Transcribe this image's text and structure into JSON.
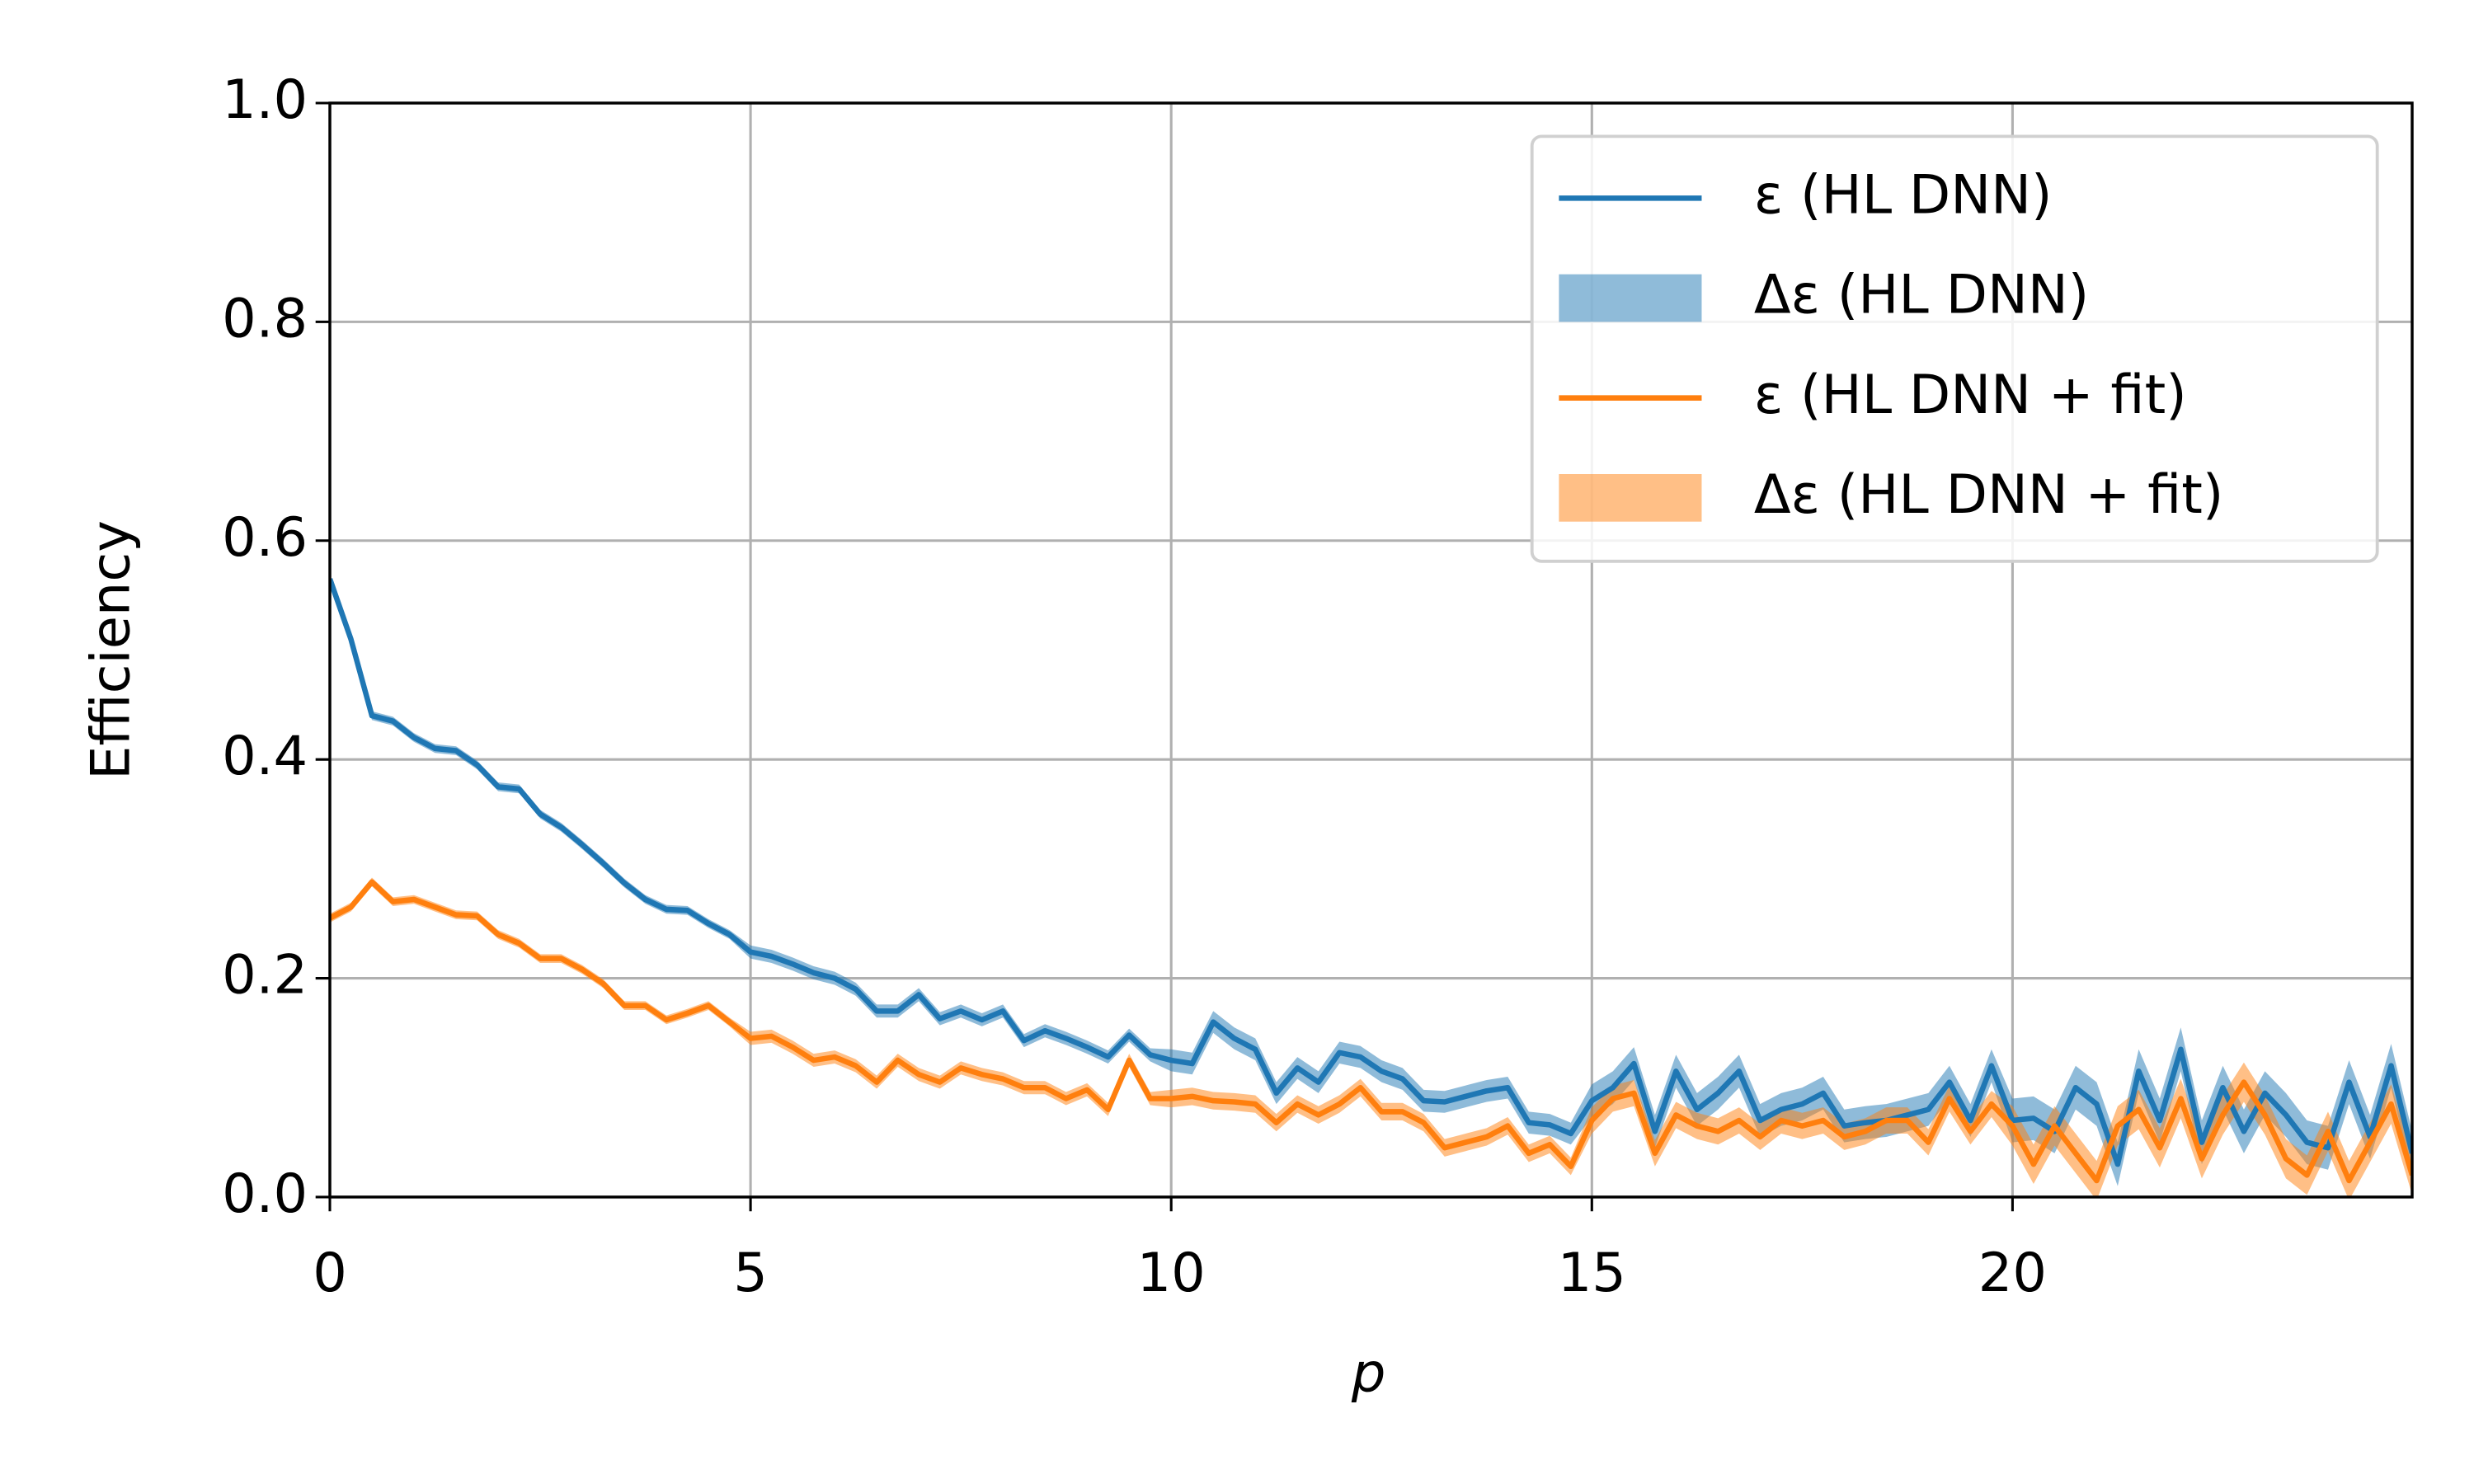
{
  "chart_data": {
    "type": "line",
    "xlabel": "p",
    "ylabel": "Efficiency",
    "xlim": [
      0,
      24.75
    ],
    "ylim": [
      0,
      1
    ],
    "xticks": [
      0,
      5,
      10,
      15,
      20
    ],
    "yticks": [
      {
        "value": 0,
        "label": "0.0"
      },
      0.2,
      0.4,
      0.6,
      0.8,
      {
        "value": 1,
        "label": "1.0"
      }
    ],
    "grid": true,
    "legend": "upper right",
    "x": [
      0,
      0.25,
      0.5,
      0.75,
      1,
      1.25,
      1.5,
      1.75,
      2,
      2.25,
      2.5,
      2.75,
      3,
      3.25,
      3.5,
      3.75,
      4,
      4.25,
      4.5,
      4.75,
      5,
      5.25,
      5.5,
      5.75,
      6,
      6.25,
      6.5,
      6.75,
      7,
      7.25,
      7.5,
      7.75,
      8,
      8.25,
      8.5,
      8.75,
      9,
      9.25,
      9.5,
      9.75,
      10,
      10.25,
      10.5,
      10.75,
      11,
      11.25,
      11.5,
      11.75,
      12,
      12.25,
      12.5,
      12.75,
      13,
      13.25,
      13.5,
      13.75,
      14,
      14.25,
      14.5,
      14.75,
      15,
      15.25,
      15.5,
      15.75,
      16,
      16.25,
      16.5,
      16.75,
      17,
      17.25,
      17.5,
      17.75,
      18,
      18.25,
      18.5,
      18.75,
      19,
      19.25,
      19.5,
      19.75,
      20,
      20.25,
      20.5,
      20.75,
      21,
      21.25,
      21.5,
      21.75,
      22,
      22.25,
      22.5,
      22.75,
      23,
      23.25,
      23.5,
      23.75,
      24,
      24.25,
      24.5,
      24.75
    ],
    "series": [
      {
        "name": "ε (HL DNN)",
        "band_name": "Δε (HL DNN)",
        "color": "#1f77b4",
        "values": [
          0.565,
          0.51,
          0.44,
          0.435,
          0.42,
          0.41,
          0.408,
          0.395,
          0.375,
          0.373,
          0.35,
          0.338,
          0.322,
          0.305,
          0.287,
          0.272,
          0.263,
          0.262,
          0.25,
          0.24,
          0.224,
          0.22,
          0.213,
          0.205,
          0.2,
          0.19,
          0.17,
          0.17,
          0.185,
          0.163,
          0.17,
          0.162,
          0.17,
          0.143,
          0.152,
          0.145,
          0.137,
          0.128,
          0.148,
          0.13,
          0.125,
          0.122,
          0.16,
          0.145,
          0.135,
          0.095,
          0.118,
          0.105,
          0.132,
          0.128,
          0.115,
          0.108,
          0.088,
          0.087,
          0.092,
          0.097,
          0.1,
          0.068,
          0.066,
          0.058,
          0.088,
          0.1,
          0.122,
          0.06,
          0.115,
          0.08,
          0.095,
          0.115,
          0.07,
          0.08,
          0.085,
          0.095,
          0.065,
          0.068,
          0.07,
          0.075,
          0.08,
          0.105,
          0.07,
          0.12,
          0.07,
          0.072,
          0.06,
          0.1,
          0.085,
          0.03,
          0.115,
          0.07,
          0.135,
          0.05,
          0.1,
          0.06,
          0.095,
          0.075,
          0.05,
          0.045,
          0.105,
          0.055,
          0.12,
          0.04
        ],
        "errors": [
          0.004,
          0.004,
          0.004,
          0.004,
          0.004,
          0.004,
          0.004,
          0.004,
          0.004,
          0.004,
          0.004,
          0.004,
          0.004,
          0.004,
          0.004,
          0.004,
          0.004,
          0.004,
          0.004,
          0.004,
          0.006,
          0.006,
          0.006,
          0.006,
          0.006,
          0.006,
          0.006,
          0.006,
          0.006,
          0.006,
          0.006,
          0.006,
          0.006,
          0.006,
          0.006,
          0.006,
          0.006,
          0.006,
          0.006,
          0.006,
          0.01,
          0.01,
          0.01,
          0.01,
          0.01,
          0.01,
          0.01,
          0.01,
          0.01,
          0.01,
          0.01,
          0.01,
          0.01,
          0.01,
          0.01,
          0.01,
          0.01,
          0.01,
          0.01,
          0.01,
          0.015,
          0.015,
          0.015,
          0.015,
          0.015,
          0.015,
          0.015,
          0.015,
          0.015,
          0.015,
          0.015,
          0.015,
          0.015,
          0.015,
          0.015,
          0.015,
          0.015,
          0.015,
          0.015,
          0.015,
          0.02,
          0.02,
          0.02,
          0.02,
          0.02,
          0.02,
          0.02,
          0.02,
          0.02,
          0.02,
          0.02,
          0.02,
          0.02,
          0.02,
          0.02,
          0.02,
          0.02,
          0.02,
          0.02,
          0.02
        ]
      },
      {
        "name": "ε (HL DNN + fit)",
        "band_name": "Δε (HL DNN + fit)",
        "color": "#ff7f0e",
        "values": [
          0.255,
          0.265,
          0.288,
          0.27,
          0.272,
          0.265,
          0.258,
          0.257,
          0.24,
          0.232,
          0.218,
          0.218,
          0.208,
          0.195,
          0.175,
          0.175,
          0.162,
          0.168,
          0.175,
          0.16,
          0.145,
          0.147,
          0.137,
          0.125,
          0.128,
          0.12,
          0.105,
          0.125,
          0.112,
          0.105,
          0.118,
          0.112,
          0.108,
          0.1,
          0.1,
          0.09,
          0.098,
          0.08,
          0.125,
          0.09,
          0.09,
          0.092,
          0.088,
          0.087,
          0.085,
          0.068,
          0.085,
          0.075,
          0.085,
          0.1,
          0.078,
          0.078,
          0.068,
          0.045,
          0.05,
          0.055,
          0.065,
          0.04,
          0.048,
          0.028,
          0.07,
          0.09,
          0.095,
          0.04,
          0.075,
          0.065,
          0.06,
          0.07,
          0.055,
          0.07,
          0.065,
          0.07,
          0.055,
          0.06,
          0.07,
          0.07,
          0.05,
          0.09,
          0.06,
          0.085,
          0.065,
          0.03,
          0.065,
          0.04,
          0.015,
          0.065,
          0.08,
          0.045,
          0.09,
          0.035,
          0.075,
          0.105,
          0.075,
          0.035,
          0.02,
          0.06,
          0.015,
          0.05,
          0.085,
          0.02
        ],
        "errors": [
          0.004,
          0.004,
          0.004,
          0.004,
          0.004,
          0.004,
          0.004,
          0.004,
          0.004,
          0.004,
          0.004,
          0.004,
          0.004,
          0.004,
          0.004,
          0.004,
          0.004,
          0.004,
          0.004,
          0.004,
          0.006,
          0.006,
          0.006,
          0.006,
          0.006,
          0.006,
          0.006,
          0.006,
          0.006,
          0.006,
          0.006,
          0.006,
          0.006,
          0.006,
          0.006,
          0.006,
          0.006,
          0.006,
          0.006,
          0.006,
          0.008,
          0.008,
          0.008,
          0.008,
          0.008,
          0.008,
          0.008,
          0.008,
          0.008,
          0.008,
          0.008,
          0.008,
          0.008,
          0.008,
          0.008,
          0.008,
          0.008,
          0.008,
          0.008,
          0.008,
          0.012,
          0.012,
          0.012,
          0.012,
          0.012,
          0.012,
          0.012,
          0.012,
          0.012,
          0.012,
          0.012,
          0.012,
          0.012,
          0.012,
          0.012,
          0.012,
          0.012,
          0.012,
          0.012,
          0.012,
          0.018,
          0.018,
          0.018,
          0.018,
          0.018,
          0.018,
          0.018,
          0.018,
          0.018,
          0.018,
          0.018,
          0.018,
          0.018,
          0.018,
          0.018,
          0.018,
          0.018,
          0.018,
          0.018,
          0.018
        ]
      }
    ]
  }
}
